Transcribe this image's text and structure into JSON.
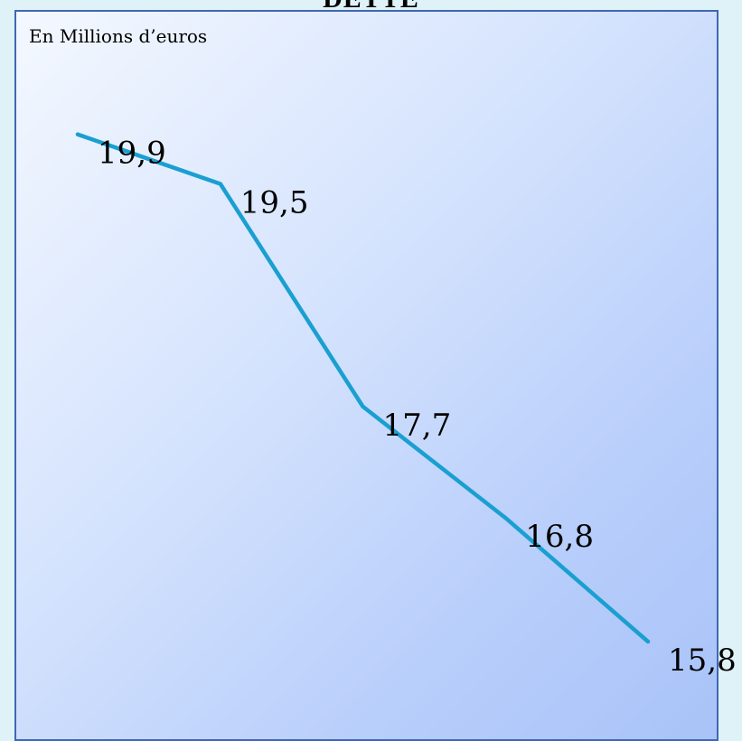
{
  "title": "DETTE",
  "unit_label": "En Millions d’euros",
  "colors": {
    "line": "#1a9fd1",
    "panel_border": "#3f67b4",
    "background": "#dff2f7"
  },
  "chart_data": {
    "type": "line",
    "title": "DETTE",
    "ylabel": "En Millions d’euros",
    "xlabel": "",
    "categories": [
      "",
      "",
      "",
      "",
      ""
    ],
    "values": [
      19.9,
      19.5,
      17.7,
      16.8,
      15.8
    ],
    "data_labels": [
      "19,9",
      "19,5",
      "17,7",
      "16,8",
      "15,8"
    ],
    "grid": false,
    "legend": "none"
  }
}
